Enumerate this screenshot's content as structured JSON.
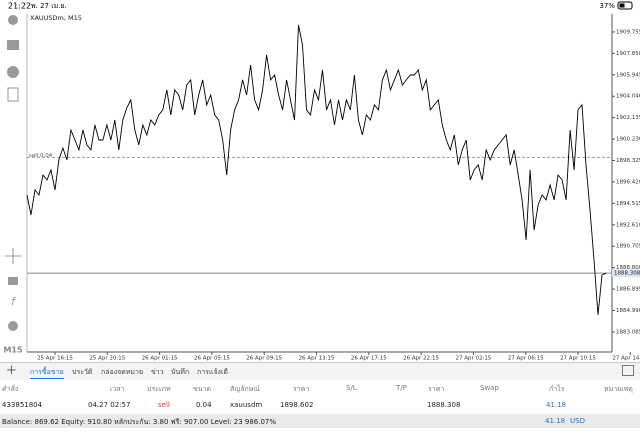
{
  "status_bar": {
    "time": "21:22",
    "date": "พ. 27 เม.ย.",
    "battery": "37%"
  },
  "chart": {
    "type": "line",
    "symbol": "XAUUSDm, M15",
    "timeframe": "M15",
    "color": "#000000",
    "values": [
      1895.26,
      1893.49,
      1895.71,
      1895.26,
      1897.04,
      1896.6,
      1897.49,
      1895.71,
      1898.38,
      1899.44,
      1898.38,
      1901.04,
      1900.15,
      1899.27,
      1901.04,
      1899.71,
      1899.27,
      1901.49,
      1900.15,
      1900.15,
      1901.49,
      1900.15,
      1901.93,
      1899.27,
      1901.93,
      1903.0,
      1903.71,
      1901.04,
      1899.71,
      1901.49,
      1900.6,
      1901.93,
      1901.49,
      1902.38,
      1902.82,
      1904.6,
      1902.38,
      1904.6,
      1904.15,
      1902.82,
      1905.04,
      1905.49,
      1902.38,
      1904.15,
      1905.49,
      1903.27,
      1904.15,
      1902.38,
      1901.93,
      1900.15,
      1897.04,
      1901.04,
      1902.82,
      1903.71,
      1905.49,
      1904.15,
      1906.82,
      1903.71,
      1902.82,
      1904.6,
      1907.71,
      1905.49,
      1905.93,
      1904.15,
      1902.82,
      1905.49,
      1903.71,
      1901.93,
      1910.38,
      1908.6,
      1902.82,
      1902.38,
      1904.6,
      1903.71,
      1906.38,
      1902.82,
      1903.71,
      1901.49,
      1903.71,
      1901.93,
      1903.71,
      1902.82,
      1905.93,
      1901.93,
      1900.6,
      1902.38,
      1901.93,
      1903.27,
      1902.82,
      1905.49,
      1906.38,
      1904.6,
      1905.49,
      1906.38,
      1905.04,
      1905.49,
      1905.93,
      1905.93,
      1906.38,
      1904.6,
      1905.49,
      1902.82,
      1903.27,
      1903.71,
      1901.49,
      1900.15,
      1899.27,
      1900.6,
      1897.93,
      1899.27,
      1900.15,
      1896.6,
      1897.49,
      1897.93,
      1896.6,
      1899.27,
      1898.38,
      1899.27,
      1899.71,
      1900.15,
      1900.6,
      1897.93,
      1899.27,
      1897.04,
      1894.82,
      1891.26,
      1897.49,
      1892.15,
      1894.38,
      1895.26,
      1894.82,
      1896.15,
      1894.82,
      1897.04,
      1896.6,
      1894.82,
      1901.04,
      1897.49,
      1902.82,
      1903.27,
      1897.93,
      1893.93,
      1889.49,
      1884.6,
      1888.15,
      1888.31
    ],
    "xtick_labels": [
      "25 Apr 16:15",
      "25 Apr 20:15",
      "26 Apr 01:15",
      "26 Apr 05:15",
      "26 Apr 09:15",
      "26 Apr 13:15",
      "26 Apr 17:15",
      "26 Apr 22:15",
      "27 Apr 02:15",
      "27 Apr 06:15",
      "27 Apr 10:15",
      "27 Apr 14:15"
    ],
    "ylim": [
      1881.3,
      1911.35
    ],
    "yticks": [
      1909.755,
      {
        "value": 1907.85,
        "label": "1907.850"
      },
      1905.945,
      {
        "value": 1904.04,
        "label": "1904.040"
      },
      1902.135,
      {
        "value": 1900.23,
        "label": "1900.230"
      },
      1898.325,
      {
        "value": 1896.42,
        "label": "1896.420"
      },
      1894.515,
      {
        "value": 1892.61,
        "label": "1892.610"
      },
      1890.705,
      {
        "value": 1888.8,
        "label": "1888.800"
      },
      1886.895,
      {
        "value": 1884.99,
        "label": "1884.990"
      },
      1883.085
    ],
    "sell_line": {
      "label": "sell 0.04",
      "value": 1898.602
    },
    "current_price": 1888.308
  },
  "tabs": [
    "การซื้อขาย",
    "ประวัติ",
    "กล่องจดหมาย",
    "ข่าว",
    "บันทึก",
    "การแจ้งเตื"
  ],
  "table": {
    "headers": [
      "คำสั่ง",
      "เวลา",
      "ประเภท",
      "ขนาด",
      "สัญลักษณ์",
      "ราคา",
      "S/L",
      "T/P",
      "ราคา",
      "Swap",
      "กำไร",
      "หมายเหตุ"
    ],
    "row": {
      "order": "433851804",
      "time": "04.27 02:57",
      "type": "sell",
      "size": "0.04",
      "symbol": "xauusdm",
      "price": "1898.602",
      "current_price": "1888.308",
      "profit": "41.18"
    }
  },
  "footer": {
    "summary": "Balance: 869.62 Equity: 910.80 หลักประกัน: 3.80 ฟรี: 907.00 Level: 23 986.07%",
    "profit": "41.18",
    "currency": "USD"
  }
}
